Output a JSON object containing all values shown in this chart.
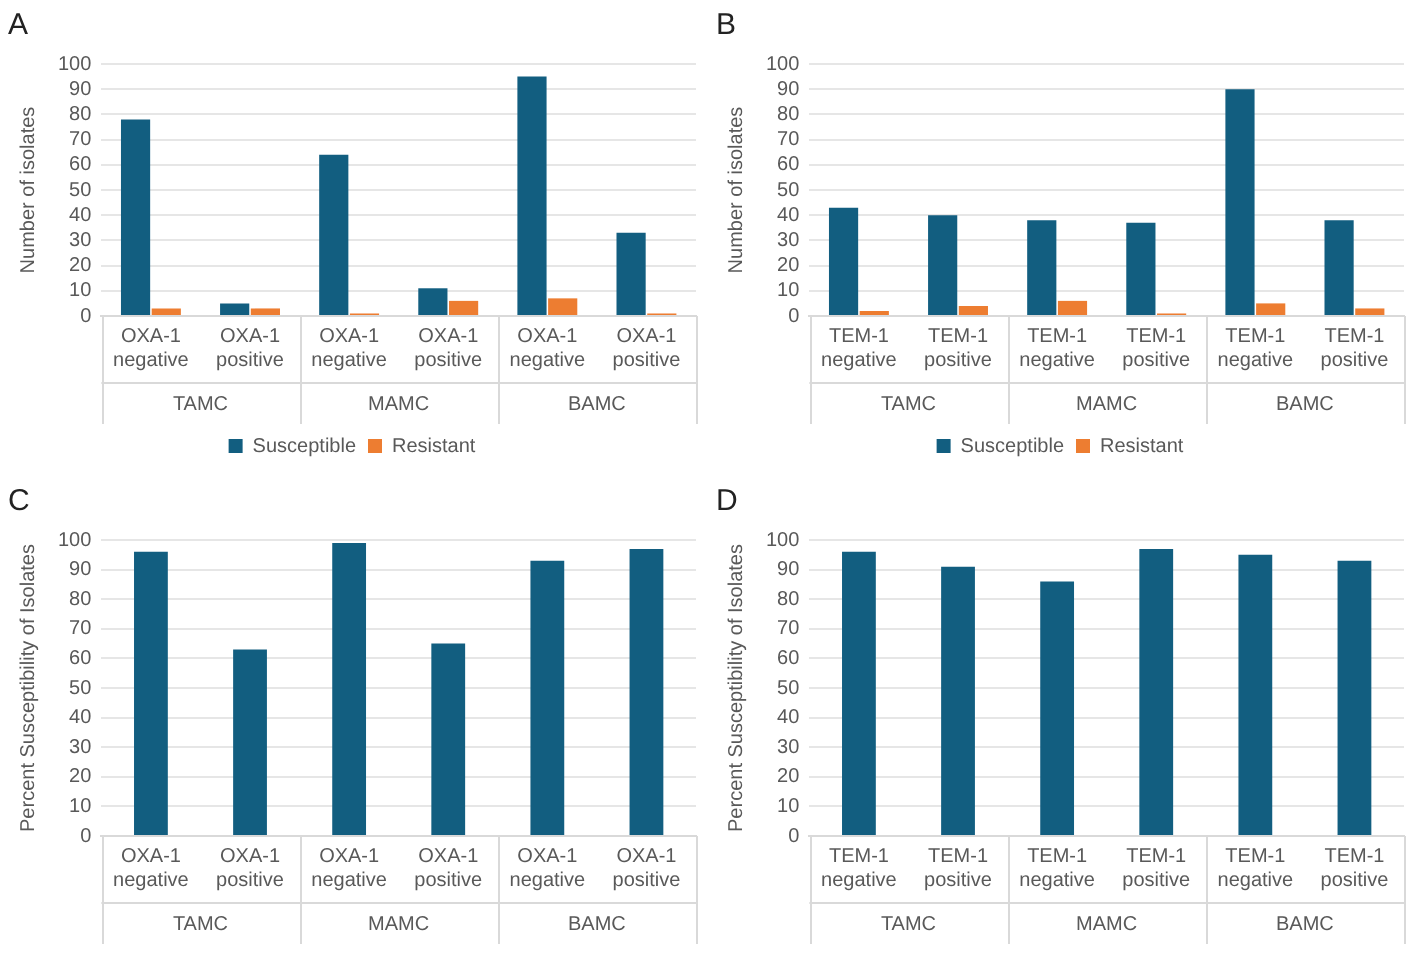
{
  "chart_data": [
    {
      "type": "bar",
      "title": "A",
      "ylabel": "Number of isolates",
      "categories": [
        "OXA-1 negative",
        "OXA-1 positive",
        "OXA-1 negative",
        "OXA-1 positive",
        "OXA-1 negative",
        "OXA-1 positive"
      ],
      "annotations": [
        "TAMC",
        "MAMC",
        "BAMC"
      ],
      "series": [
        {
          "name": "Susceptible",
          "color": "#125e80",
          "values": [
            78,
            5,
            64,
            11,
            95,
            33
          ]
        },
        {
          "name": "Resistant",
          "color": "#ed7d31",
          "values": [
            3,
            3,
            1,
            6,
            7,
            1
          ]
        }
      ],
      "ylim": [
        0,
        100
      ],
      "yticks": [
        0,
        10,
        20,
        30,
        40,
        50,
        60,
        70,
        80,
        90,
        100
      ],
      "grid": "y",
      "legend": "bottom"
    },
    {
      "type": "bar",
      "title": "B",
      "ylabel": "Number of isolates",
      "categories": [
        "TEM-1 negative",
        "TEM-1 positive",
        "TEM-1 negative",
        "TEM-1 positive",
        "TEM-1 negative",
        "TEM-1 positive"
      ],
      "annotations": [
        "TAMC",
        "MAMC",
        "BAMC"
      ],
      "series": [
        {
          "name": "Susceptible",
          "color": "#125e80",
          "values": [
            43,
            40,
            38,
            37,
            90,
            38
          ]
        },
        {
          "name": "Resistant",
          "color": "#ed7d31",
          "values": [
            2,
            4,
            6,
            1,
            5,
            3
          ]
        }
      ],
      "ylim": [
        0,
        100
      ],
      "yticks": [
        0,
        10,
        20,
        30,
        40,
        50,
        60,
        70,
        80,
        90,
        100
      ],
      "grid": "y",
      "legend": "bottom"
    },
    {
      "type": "bar",
      "title": "C",
      "ylabel": "Percent Susceptibility of Isolates",
      "categories": [
        "OXA-1 negative",
        "OXA-1 positive",
        "OXA-1 negative",
        "OXA-1 positive",
        "OXA-1 negative",
        "OXA-1 positive"
      ],
      "annotations": [
        "TAMC",
        "MAMC",
        "BAMC"
      ],
      "series": [
        {
          "color": "#125e80",
          "values": [
            96,
            63,
            99,
            65,
            93,
            97
          ]
        }
      ],
      "ylim": [
        0,
        100
      ],
      "yticks": [
        0,
        10,
        20,
        30,
        40,
        50,
        60,
        70,
        80,
        90,
        100
      ],
      "grid": "y"
    },
    {
      "type": "bar",
      "title": "D",
      "ylabel": "Percent Susceptibility of Isolates",
      "categories": [
        "TEM-1 negative",
        "TEM-1 positive",
        "TEM-1 negative",
        "TEM-1 positive",
        "TEM-1 negative",
        "TEM-1 positive"
      ],
      "annotations": [
        "TAMC",
        "MAMC",
        "BAMC"
      ],
      "series": [
        {
          "color": "#125e80",
          "values": [
            96,
            91,
            86,
            97,
            95,
            93
          ]
        }
      ],
      "ylim": [
        0,
        100
      ],
      "yticks": [
        0,
        10,
        20,
        30,
        40,
        50,
        60,
        70,
        80,
        90,
        100
      ],
      "grid": "y"
    }
  ]
}
